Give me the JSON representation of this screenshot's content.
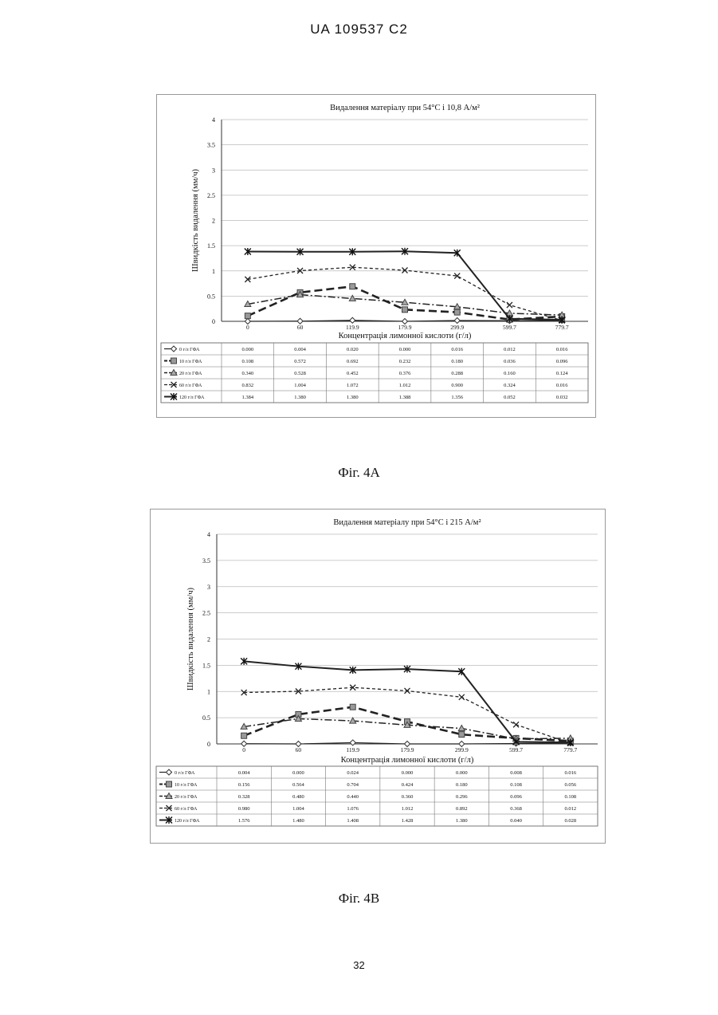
{
  "page": {
    "header": "UA   109537   C2",
    "page_number": "32"
  },
  "chart_data": [
    {
      "type": "line",
      "caption": "Фіг. 4А",
      "title": "Видалення матеріалу при 54°C і 10,8 А/м²",
      "xlabel": "Концентрація лимонної кислоти (г/л)",
      "ylabel": "Швидкість видалення (мм/ч)",
      "ylim": [
        0,
        4
      ],
      "yticks": [
        "0",
        "0.5",
        "1",
        "1.5",
        "2",
        "2.5",
        "3",
        "3.5",
        "4"
      ],
      "categories": [
        "0",
        "60",
        "119.9",
        "179.9",
        "299.9",
        "599.7",
        "779.7"
      ],
      "grid": true,
      "legend": "data-table-below",
      "series": [
        {
          "name": "0 г/л ГФА",
          "values": [
            0.0,
            0.004,
            0.02,
            0.0,
            0.016,
            0.012,
            0.016
          ],
          "labels": [
            "0.000",
            "0.004",
            "0.020",
            "0.000",
            "0.016",
            "0.012",
            "0.016"
          ]
        },
        {
          "name": "10 г/л ГФА",
          "values": [
            0.108,
            0.572,
            0.692,
            0.232,
            0.18,
            0.036,
            0.096
          ],
          "labels": [
            "0.108",
            "0.572",
            "0.692",
            "0.232",
            "0.180",
            "0.036",
            "0.096"
          ]
        },
        {
          "name": "20 г/л ГФА",
          "values": [
            0.34,
            0.528,
            0.452,
            0.376,
            0.288,
            0.16,
            0.124
          ],
          "labels": [
            "0.340",
            "0.528",
            "0.452",
            "0.376",
            "0.288",
            "0.160",
            "0.124"
          ]
        },
        {
          "name": "60 г/л ГФА",
          "values": [
            0.832,
            1.004,
            1.072,
            1.012,
            0.9,
            0.324,
            0.016
          ],
          "labels": [
            "0.832",
            "1.004",
            "1.072",
            "1.012",
            "0.900",
            "0.324",
            "0.016"
          ]
        },
        {
          "name": "120 г/л ГФА",
          "values": [
            1.384,
            1.38,
            1.38,
            1.388,
            1.356,
            0.052,
            0.032
          ],
          "labels": [
            "1.384",
            "1.380",
            "1.380",
            "1.388",
            "1.356",
            "0.052",
            "0.032"
          ]
        }
      ]
    },
    {
      "type": "line",
      "caption": "Фіг. 4В",
      "title": "Видалення матеріалу при 54°C і 215 А/м²",
      "xlabel": "Концентрація лимонної кислоти (г/л)",
      "ylabel": "Швидкість видалення (мм/ч)",
      "ylim": [
        0,
        4
      ],
      "yticks": [
        "0",
        "0.5",
        "1",
        "1.5",
        "2",
        "2.5",
        "3",
        "3.5",
        "4"
      ],
      "categories": [
        "0",
        "60",
        "119.9",
        "179.9",
        "299.9",
        "599.7",
        "779.7"
      ],
      "grid": true,
      "legend": "data-table-below",
      "series": [
        {
          "name": "0 г/л ГФА",
          "values": [
            0.004,
            0.0,
            0.024,
            0.0,
            0.0,
            0.008,
            0.016
          ],
          "labels": [
            "0.004",
            "0.000",
            "0.024",
            "0.000",
            "0.000",
            "0.008",
            "0.016"
          ]
        },
        {
          "name": "10 г/л ГФА",
          "values": [
            0.156,
            0.564,
            0.704,
            0.424,
            0.18,
            0.108,
            0.056
          ],
          "labels": [
            "0.156",
            "0.564",
            "0.704",
            "0.424",
            "0.180",
            "0.108",
            "0.056"
          ]
        },
        {
          "name": "20 г/л ГФА",
          "values": [
            0.328,
            0.48,
            0.44,
            0.36,
            0.296,
            0.096,
            0.108
          ],
          "labels": [
            "0.328",
            "0.480",
            "0.440",
            "0.360",
            "0.296",
            "0.096",
            "0.108"
          ]
        },
        {
          "name": "60 г/л ГФА",
          "values": [
            0.98,
            1.004,
            1.076,
            1.012,
            0.892,
            0.368,
            0.012
          ],
          "labels": [
            "0.980",
            "1.004",
            "1.076",
            "1.012",
            "0.892",
            "0.368",
            "0.012"
          ]
        },
        {
          "name": "120 г/л ГФА",
          "values": [
            1.576,
            1.48,
            1.408,
            1.428,
            1.38,
            0.04,
            0.028
          ],
          "labels": [
            "1.576",
            "1.480",
            "1.408",
            "1.428",
            "1.380",
            "0.040",
            "0.028"
          ]
        }
      ]
    }
  ]
}
